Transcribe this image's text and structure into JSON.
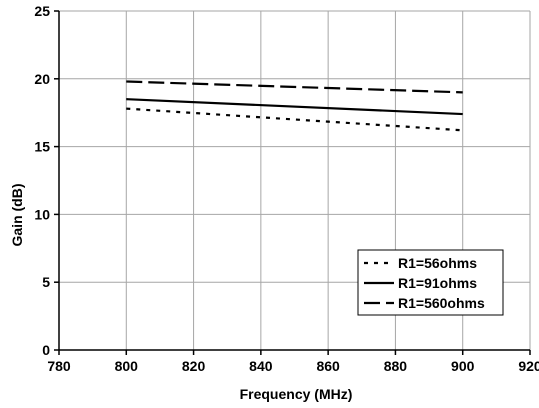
{
  "chart_data": {
    "type": "line",
    "title": "",
    "xlabel": "Frequency (MHz)",
    "ylabel": "Gain (dB)",
    "xlim": [
      780,
      920
    ],
    "ylim": [
      0,
      25
    ],
    "xticks": [
      780,
      800,
      820,
      840,
      860,
      880,
      900,
      920
    ],
    "yticks": [
      0,
      5,
      10,
      15,
      20,
      25
    ],
    "grid": true,
    "legend_position": "bottom-right",
    "x": [
      800,
      900
    ],
    "series": [
      {
        "name": "R1=56ohms",
        "values": [
          17.8,
          16.2
        ],
        "line_style": "dotted",
        "color": "#000000"
      },
      {
        "name": "R1=91ohms",
        "values": [
          18.5,
          17.4
        ],
        "line_style": "solid",
        "color": "#000000"
      },
      {
        "name": "R1=560ohms",
        "values": [
          19.8,
          19.0
        ],
        "line_style": "long-dash",
        "color": "#000000"
      }
    ]
  }
}
